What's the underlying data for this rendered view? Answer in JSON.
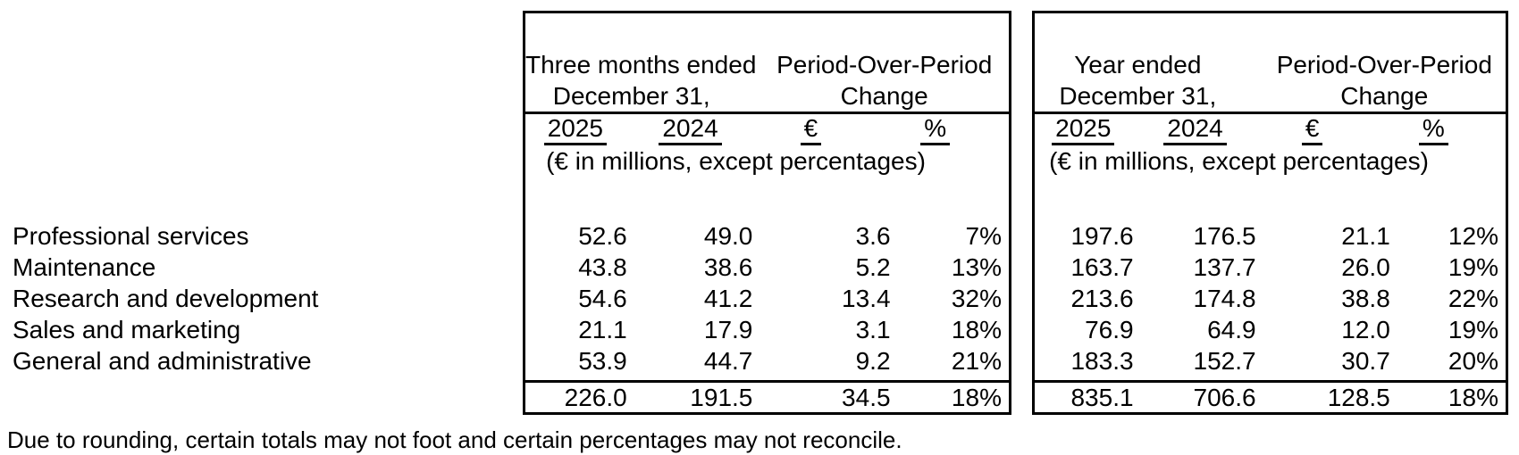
{
  "colors": {
    "background": "#ffffff",
    "text": "#000000",
    "border": "#000000"
  },
  "row_labels": [
    "Professional services",
    "Maintenance",
    "Research and development",
    "Sales and marketing",
    "General and administrative"
  ],
  "footnote": "Due to rounding, certain totals may not foot and certain percentages may not reconcile.",
  "tables": [
    {
      "period_header_line1": "Three months ended",
      "period_header_line2": "December 31,",
      "change_header_line1": "Period-Over-Period",
      "change_header_line2": "Change",
      "column_headers": [
        "2025",
        "2024",
        "€",
        "%"
      ],
      "units_note": "(€ in millions, except percentages)",
      "rows": [
        [
          "52.6",
          "49.0",
          "3.6",
          "7%"
        ],
        [
          "43.8",
          "38.6",
          "5.2",
          "13%"
        ],
        [
          "54.6",
          "41.2",
          "13.4",
          "32%"
        ],
        [
          "21.1",
          "17.9",
          "3.1",
          "18%"
        ],
        [
          "53.9",
          "44.7",
          "9.2",
          "21%"
        ]
      ],
      "totals": [
        "226.0",
        "191.5",
        "34.5",
        "18%"
      ]
    },
    {
      "period_header_line1": "Year ended",
      "period_header_line2": "December 31,",
      "change_header_line1": "Period-Over-Period",
      "change_header_line2": "Change",
      "column_headers": [
        "2025",
        "2024",
        "€",
        "%"
      ],
      "units_note": "(€ in millions, except percentages)",
      "rows": [
        [
          "197.6",
          "176.5",
          "21.1",
          "12%"
        ],
        [
          "163.7",
          "137.7",
          "26.0",
          "19%"
        ],
        [
          "213.6",
          "174.8",
          "38.8",
          "22%"
        ],
        [
          "76.9",
          "64.9",
          "12.0",
          "19%"
        ],
        [
          "183.3",
          "152.7",
          "30.7",
          "20%"
        ]
      ],
      "totals": [
        "835.1",
        "706.6",
        "128.5",
        "18%"
      ]
    }
  ]
}
